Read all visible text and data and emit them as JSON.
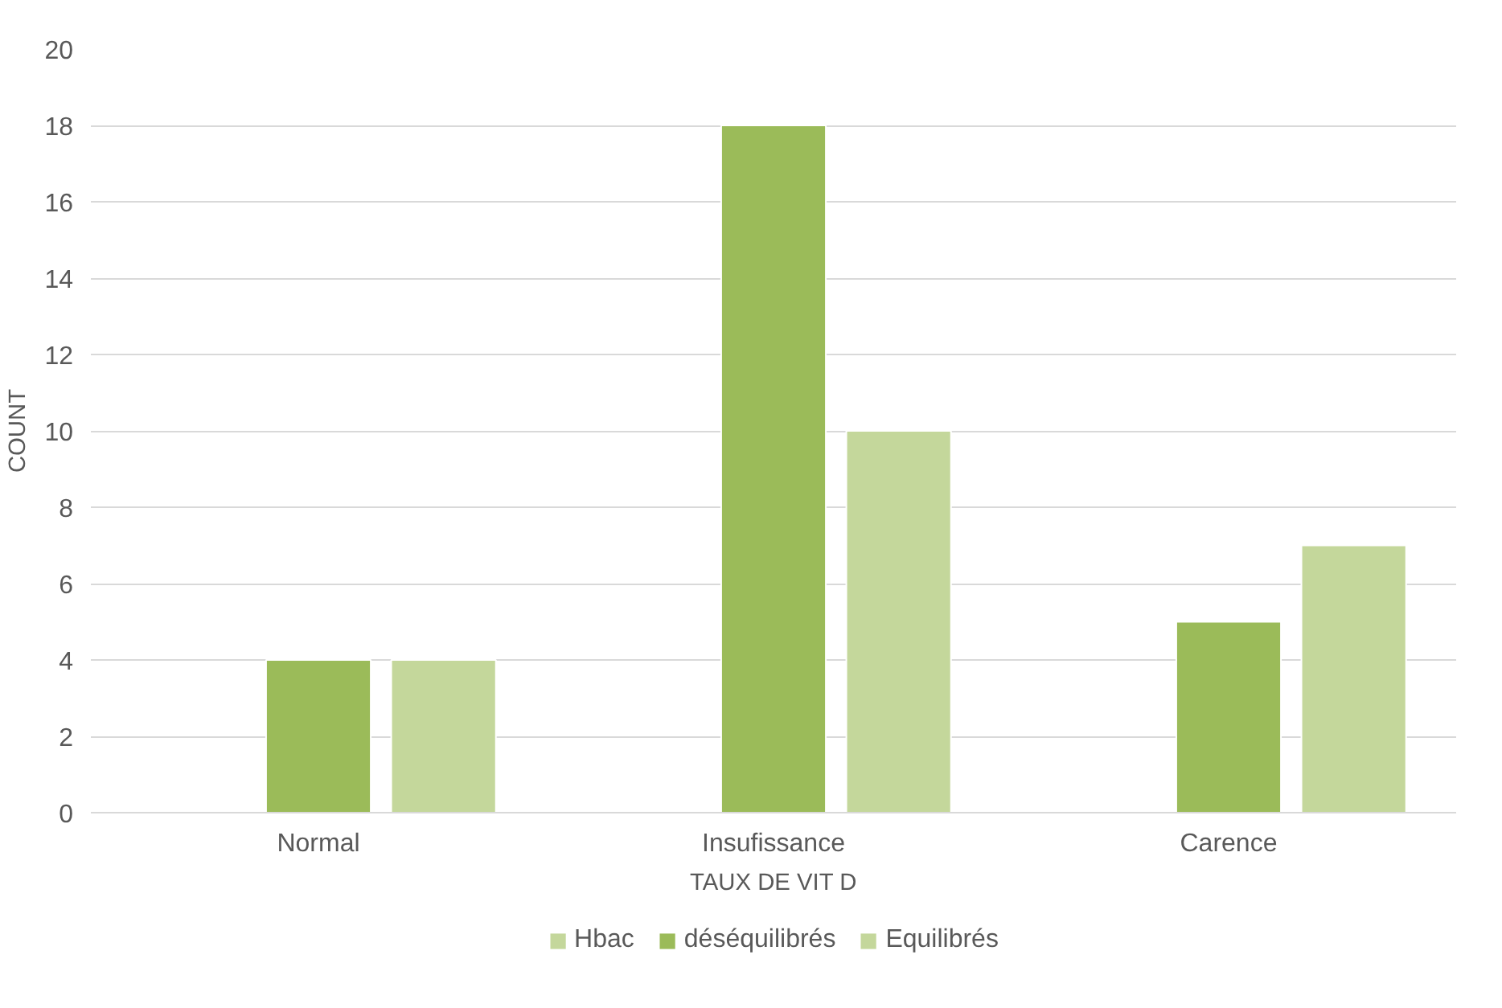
{
  "chart_data": {
    "type": "bar",
    "xlabel": "TAUX DE VIT D",
    "ylabel": "COUNT",
    "categories": [
      "Normal",
      "Insufissance",
      "Carence"
    ],
    "series": [
      {
        "name": "Hbac",
        "color": "#c4d79b",
        "values": [
          null,
          null,
          null
        ]
      },
      {
        "name": "déséquilibrés",
        "color": "#9bbb59",
        "values": [
          4,
          18,
          5
        ]
      },
      {
        "name": "Equilibrés",
        "color": "#c4d79b",
        "values": [
          4,
          10,
          7
        ]
      }
    ],
    "ylim": [
      0,
      20
    ],
    "yticks": [
      0,
      2,
      4,
      6,
      8,
      10,
      12,
      14,
      16,
      18,
      20
    ],
    "grid": "y",
    "legend": "bottom"
  }
}
